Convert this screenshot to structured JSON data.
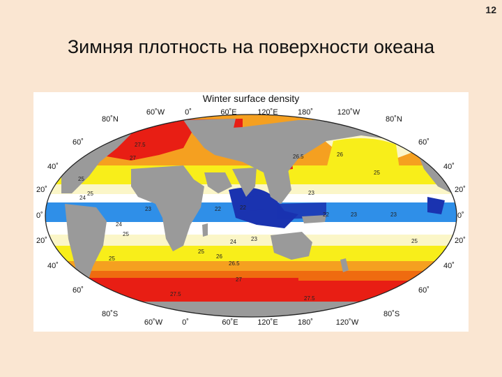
{
  "slide": {
    "number": "12",
    "title": "Зимняя плотность на поверхности океана"
  },
  "figure": {
    "title": "Winter surface density",
    "top_lon_labels": [
      "60˚W",
      "0˚",
      "60˚E",
      "120˚E",
      "180˚",
      "120˚W"
    ],
    "bottom_lon_labels": [
      "60˚W",
      "0˚",
      "60˚E",
      "120˚E",
      "180˚",
      "120˚W"
    ],
    "left_lat_labels": [
      "80˚N",
      "60˚",
      "40˚",
      "20˚",
      "0˚",
      "20˚",
      "40˚",
      "60˚",
      "80˚S"
    ],
    "right_lat_labels": [
      "80˚N",
      "60˚",
      "40˚",
      "20˚",
      "0˚",
      "20˚",
      "40˚",
      "60˚",
      "80˚S"
    ],
    "contour_labels": [
      "27.5",
      "27",
      "26.5",
      "26",
      "25",
      "25",
      "24",
      "25",
      "23",
      "22",
      "22",
      "23",
      "22",
      "23",
      "24",
      "25",
      "24",
      "23",
      "25",
      "25",
      "26",
      "26.5",
      "27",
      "27.5",
      "27.5",
      "25",
      "23"
    ],
    "colors": {
      "land": "#9a9a9a",
      "dark_blue": "#1a33b0",
      "blue": "#2f8fe8",
      "white": "#ffffff",
      "cream": "#fbf6c8",
      "yellow": "#f8ee1a",
      "orange": "#f5a020",
      "dark_orange": "#ef6b10",
      "red": "#e81e14"
    }
  }
}
